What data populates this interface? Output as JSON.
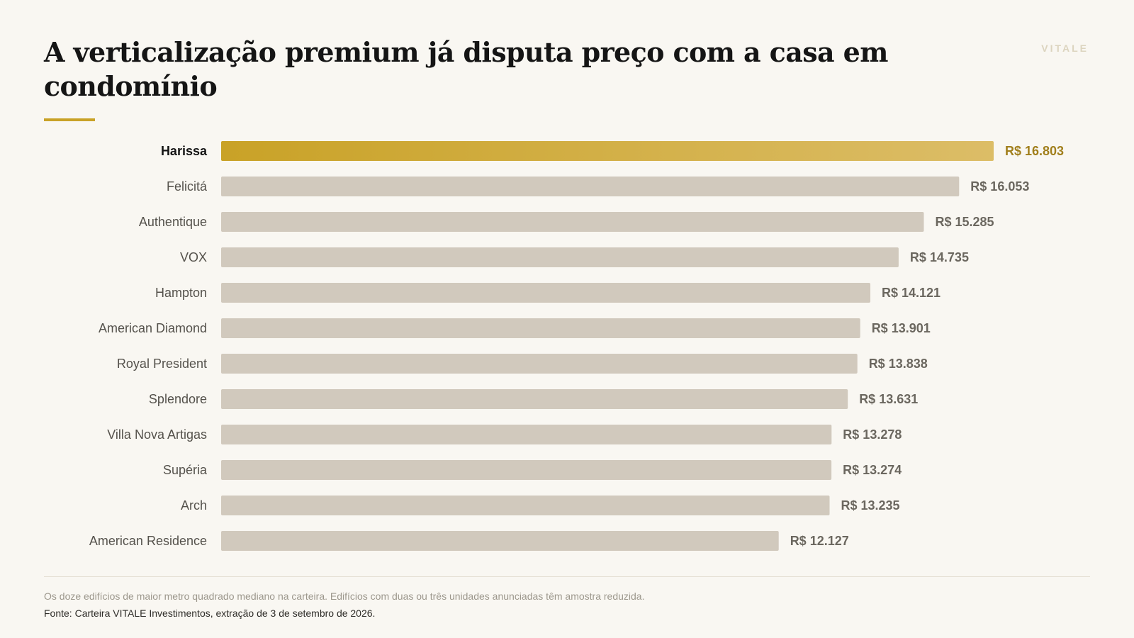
{
  "brand": "VITALE",
  "title": "A verticalização premium já disputa preço com a casa em condomínio",
  "note": "Os doze edifícios de maior metro quadrado mediano na carteira. Edifícios com duas ou três unidades anunciadas têm amostra reduzida.",
  "source": "Fonte: Carteira VITALE Investimentos, extração de 3 de setembro de 2026.",
  "colors": {
    "highlight_start": "#c9a227",
    "highlight_end": "#dcbd67",
    "bar": "#d1c9bd"
  },
  "chart_data": {
    "type": "bar",
    "orientation": "horizontal",
    "highlight": "Harissa",
    "categories": [
      "Harissa",
      "Felicitá",
      "Authentique",
      "VOX",
      "Hampton",
      "American Diamond",
      "Royal President",
      "Splendore",
      "Villa Nova Artigas",
      "Supéria",
      "Arch",
      "American Residence"
    ],
    "values": [
      16803,
      16053,
      15285,
      14735,
      14121,
      13901,
      13838,
      13631,
      13278,
      13274,
      13235,
      12127
    ],
    "value_labels": [
      "R$ 16.803",
      "R$ 16.053",
      "R$ 15.285",
      "R$ 14.735",
      "R$ 14.121",
      "R$ 13.901",
      "R$ 13.838",
      "R$ 13.631",
      "R$ 13.278",
      "R$ 13.274",
      "R$ 13.235",
      "R$ 12.127"
    ],
    "xlim": [
      0,
      16803
    ],
    "grid": false,
    "legend": "none"
  }
}
